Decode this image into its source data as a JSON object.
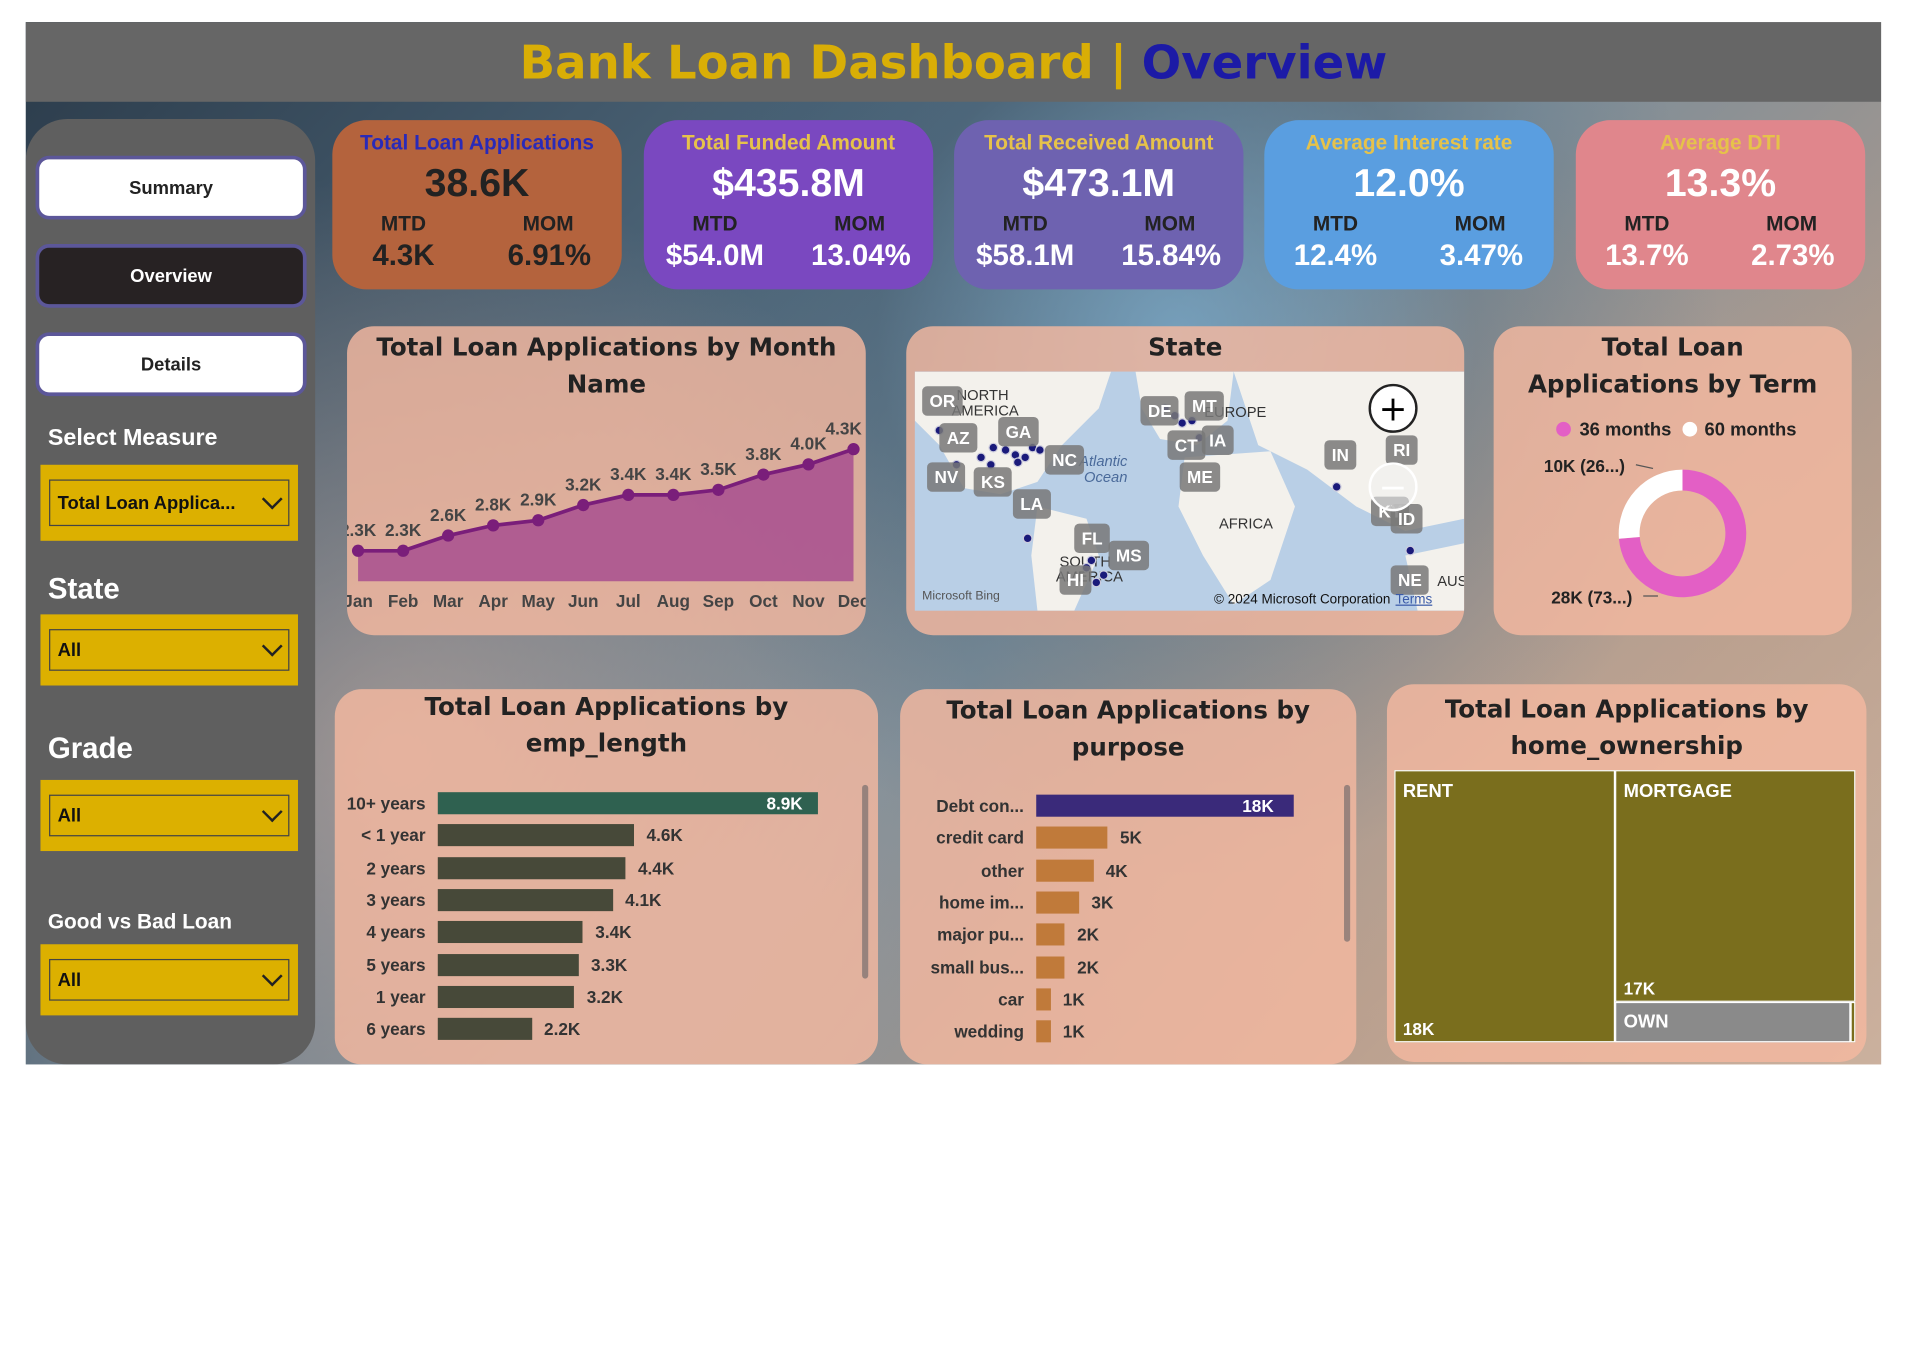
{
  "header": {
    "title_main": "Bank Loan Dashboard |",
    "title_page": "Overview"
  },
  "nav": {
    "summary": "Summary",
    "overview": "Overview",
    "details": "Details"
  },
  "filters": {
    "measure_label": "Select Measure",
    "measure_value": "Total Loan Applica...",
    "state_label": "State",
    "state_value": "All",
    "grade_label": "Grade",
    "grade_value": "All",
    "good_bad_label": "Good vs Bad Loan",
    "good_bad_value": "All"
  },
  "kpis": [
    {
      "title": "Total Loan Applications",
      "value": "38.6K",
      "mtd_label": "MTD",
      "mom_label": "MOM",
      "mtd": "4.3K",
      "mom": "6.91%",
      "bg": "#b4633d",
      "title_color": "#2a2ab8",
      "value_color": "#222222",
      "sub_color": "#222222"
    },
    {
      "title": "Total Funded Amount",
      "value": "$435.8M",
      "mtd_label": "MTD",
      "mom_label": "MOM",
      "mtd": "$54.0M",
      "mom": "13.04%",
      "bg": "#7a48c0",
      "title_color": "#e6c24a",
      "value_color": "#ffffff",
      "sub_color": "#ffffff"
    },
    {
      "title": "Total Received Amount",
      "value": "$473.1M",
      "mtd_label": "MTD",
      "mom_label": "MOM",
      "mtd": "$58.1M",
      "mom": "15.84%",
      "bg": "#6e62b0",
      "title_color": "#e6c24a",
      "value_color": "#ffffff",
      "sub_color": "#ffffff"
    },
    {
      "title": "Average Interest rate",
      "value": "12.0%",
      "mtd_label": "MTD",
      "mom_label": "MOM",
      "mtd": "12.4%",
      "mom": "3.47%",
      "bg": "#5a9ee0",
      "title_color": "#e6c24a",
      "value_color": "#ffffff",
      "sub_color": "#ffffff"
    },
    {
      "title": "Average DTI",
      "value": "13.3%",
      "mtd_label": "MTD",
      "mom_label": "MOM",
      "mtd": "13.7%",
      "mom": "2.73%",
      "bg": "#e0868c",
      "title_color": "#e6c24a",
      "value_color": "#ffffff",
      "sub_color": "#ffffff"
    }
  ],
  "monthly_panel": {
    "title": "Total Loan Applications by Month Name"
  },
  "state_panel": {
    "title": "State",
    "states": [
      "OR",
      "AZ",
      "GA",
      "NV",
      "KS",
      "NC",
      "LA",
      "DE",
      "MT",
      "CT",
      "IA",
      "ME",
      "IN",
      "RI",
      "KY",
      "ID",
      "FL",
      "MS",
      "HI",
      "NE"
    ],
    "region_labels": [
      "NORTH",
      "AMERICA",
      "Atlantic",
      "Ocean",
      "EUROPE",
      "AFRICA",
      "SOUTH",
      "AMERICA",
      "AUS"
    ],
    "bing": "Microsoft Bing",
    "copyright": "© 2024 Microsoft Corporation",
    "terms": "Terms"
  },
  "term_panel": {
    "title": "Total Loan Applications by Term"
  },
  "emp_panel": {
    "title": "Total Loan Applications by emp_length"
  },
  "purpose_panel": {
    "title": "Total Loan Applications by purpose"
  },
  "home_panel": {
    "title": "Total Loan Applications by home_ownership",
    "cells": [
      {
        "label": "RENT",
        "value": "18K"
      },
      {
        "label": "MORTGAGE",
        "value": "17K"
      },
      {
        "label": "OWN",
        "value": ""
      }
    ]
  },
  "chart_data": [
    {
      "type": "area",
      "title": "Total Loan Applications by Month Name",
      "categories": [
        "Jan",
        "Feb",
        "Mar",
        "Apr",
        "May",
        "Jun",
        "Jul",
        "Aug",
        "Sep",
        "Oct",
        "Nov",
        "Dec"
      ],
      "values": [
        2.3,
        2.3,
        2.6,
        2.8,
        2.9,
        3.2,
        3.4,
        3.4,
        3.5,
        3.8,
        4.0,
        4.3
      ],
      "labels": [
        "2.3K",
        "2.3K",
        "2.6K",
        "2.8K",
        "2.9K",
        "3.2K",
        "3.4K",
        "3.4K",
        "3.5K",
        "3.8K",
        "4.0K",
        "4.3K"
      ],
      "color": "#7a1e7a"
    },
    {
      "type": "pie",
      "title": "Total Loan Applications by Term",
      "series": [
        {
          "name": "36 months",
          "value": 28,
          "label": "28K (73...)",
          "color": "#e35fc5"
        },
        {
          "name": "60 months",
          "value": 10,
          "label": "10K (26...)",
          "color": "#ffffff"
        }
      ]
    },
    {
      "type": "bar",
      "title": "Total Loan Applications by emp_length",
      "categories": [
        "10+ years",
        "< 1 year",
        "2 years",
        "3 years",
        "4 years",
        "5 years",
        "1 year",
        "6 years"
      ],
      "values": [
        8.9,
        4.6,
        4.4,
        4.1,
        3.4,
        3.3,
        3.2,
        2.2
      ],
      "labels": [
        "8.9K",
        "4.6K",
        "4.4K",
        "4.1K",
        "3.4K",
        "3.3K",
        "3.2K",
        "2.2K"
      ],
      "colors": [
        "#2f6150",
        "#474939",
        "#474939",
        "#474939",
        "#474939",
        "#474939",
        "#474939",
        "#474939"
      ]
    },
    {
      "type": "bar",
      "title": "Total Loan Applications by purpose",
      "categories": [
        "Debt con...",
        "credit card",
        "other",
        "home im...",
        "major pu...",
        "small bus...",
        "car",
        "wedding"
      ],
      "values": [
        18,
        5,
        4,
        3,
        2,
        2,
        1,
        1
      ],
      "labels": [
        "18K",
        "5K",
        "4K",
        "3K",
        "2K",
        "2K",
        "1K",
        "1K"
      ],
      "colors": [
        "#3a2a7a",
        "#c07a3a",
        "#c07a3a",
        "#c07a3a",
        "#c07a3a",
        "#c07a3a",
        "#c07a3a",
        "#c07a3a"
      ]
    }
  ]
}
